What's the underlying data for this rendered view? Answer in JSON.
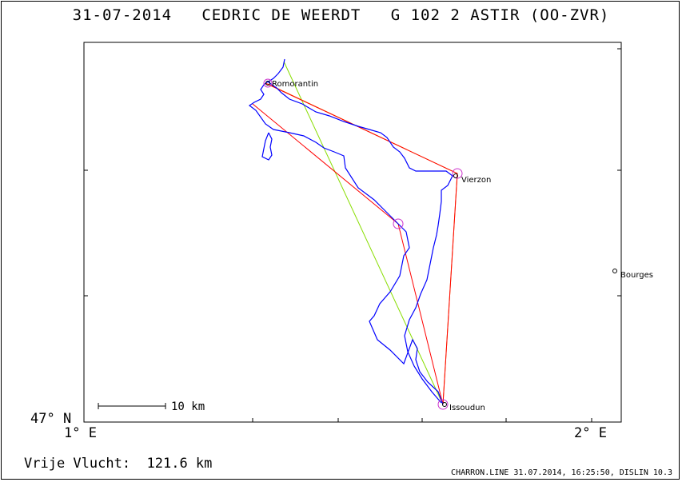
{
  "header": {
    "title": "31-07-2014   CEDRIC DE WEERDT   G 102 2 ASTIR (OO-ZVR)"
  },
  "map": {
    "axes": {
      "y_bottom_label": "47° N",
      "x_left_label": "1° E",
      "x_right_label": "2° E"
    },
    "scale_bar": {
      "label": "10 km"
    },
    "places": [
      {
        "name": "Romorantin"
      },
      {
        "name": "Vierzon"
      },
      {
        "name": "Issoudun"
      },
      {
        "name": "Bourges"
      }
    ],
    "colors": {
      "track": "#0000ff",
      "task_line_green": "#88dd00",
      "task_line_red": "#ff0000",
      "task_line_orange": "#ee8800",
      "turnpoint_circle": "#cc33cc"
    }
  },
  "footer": {
    "distance_text": "Vrije Vlucht:  121.6 km",
    "program_info": "CHARRON.LINE 31.07.2014, 16:25:50, DISLIN 10.3"
  }
}
